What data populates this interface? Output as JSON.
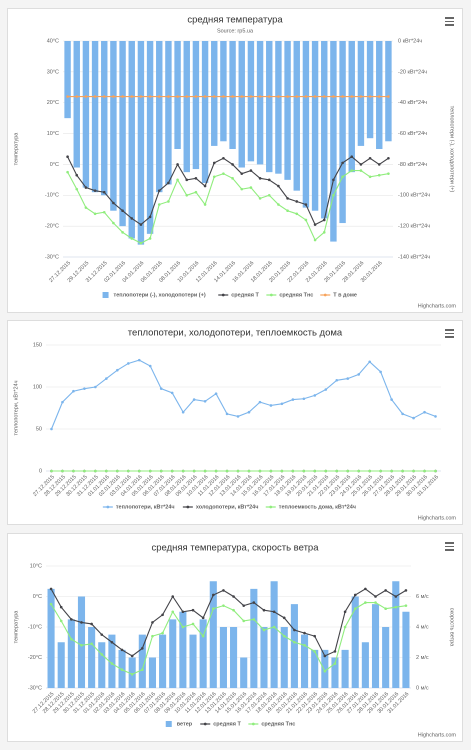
{
  "chart_data": [
    {
      "type": "combo",
      "title": "средняя температура",
      "subtitle": "Source: rp5.ua",
      "y_title": "температура",
      "y2_title": "теплопотери (-), холодопотери (+)",
      "credits": "Highcharts.com",
      "legend": "bottom",
      "grid": true,
      "categories": [
        "27.12.2015",
        null,
        "29.12.2015",
        null,
        "31.12.2015",
        null,
        "02.01.2016",
        null,
        "04.01.2016",
        null,
        "06.01.2016",
        null,
        "08.01.2016",
        null,
        "10.01.2016",
        null,
        "12.01.2016",
        null,
        "14.01.2016",
        null,
        "16.01.2016",
        null,
        "18.01.2016",
        null,
        "20.01.2016",
        null,
        "22.01.2016",
        null,
        "24.01.2016",
        null,
        "26.01.2016",
        null,
        "28.01.2016",
        null,
        "30.01.2016",
        null
      ],
      "ylim": [
        -30,
        40
      ],
      "yticks": [
        {
          "value": -30,
          "label": "-30°C"
        },
        {
          "value": -20,
          "label": "-20°C"
        },
        {
          "value": -10,
          "label": "-10°C"
        },
        {
          "value": 0,
          "label": "0°C"
        },
        {
          "value": 10,
          "label": "10°C"
        },
        {
          "value": 20,
          "label": "20°C"
        },
        {
          "value": 30,
          "label": "30°C"
        },
        {
          "value": 40,
          "label": "40°C"
        }
      ],
      "y2lim": [
        -140,
        0
      ],
      "y2ticks": [
        {
          "value": -140,
          "label": "-140 кВт*24ч"
        },
        {
          "value": -120,
          "label": "-120 кВт*24ч"
        },
        {
          "value": -100,
          "label": "-100 кВт*24ч"
        },
        {
          "value": -80,
          "label": "-80 кВт*24ч"
        },
        {
          "value": -60,
          "label": "-60 кВт*24ч"
        },
        {
          "value": -40,
          "label": "-40 кВт*24ч"
        },
        {
          "value": -20,
          "label": "-20 кВт*24ч"
        },
        {
          "value": 0,
          "label": "0 кВт*24ч"
        }
      ],
      "series": [
        {
          "name": "теплопотери (-), холодопотери (+)",
          "type": "bar",
          "axis": "y2",
          "color": "#7cb5ec",
          "values": [
            -50,
            -82,
            -95,
            -98,
            -100,
            -110,
            -120,
            -128,
            -132,
            -125,
            -98,
            -93,
            -70,
            -85,
            -83,
            -92,
            -68,
            -65,
            -70,
            -82,
            -78,
            -80,
            -85,
            -86,
            -90,
            -97,
            -108,
            -110,
            -115,
            -130,
            -118,
            -85,
            -68,
            -63,
            -70,
            -65
          ]
        },
        {
          "name": "средняя Т",
          "type": "line",
          "color": "#434348",
          "values": [
            2.5,
            -3.5,
            -7.5,
            -8.5,
            -9,
            -12.5,
            -15,
            -17.5,
            -19.5,
            -17,
            -8.5,
            -6,
            0,
            -5,
            -4.5,
            -7,
            0.5,
            2,
            0,
            -3,
            -2,
            -4.5,
            -5,
            -7,
            -11,
            -12,
            -13,
            -19.5,
            -18,
            -5,
            0.5,
            2.5,
            0,
            2,
            0,
            2
          ]
        },
        {
          "name": "средняя Тнс",
          "type": "line",
          "color": "#90ed7d",
          "values": [
            -2.5,
            -8,
            -14,
            -16,
            -15.5,
            -19,
            -22,
            -24,
            -25.5,
            -24,
            -13,
            -12,
            -5,
            -10,
            -9,
            -13,
            -4,
            -3,
            -4.5,
            -8,
            -7.5,
            -11,
            -10,
            -13,
            -15,
            -16,
            -18,
            -24.5,
            -22,
            -10,
            -4,
            -2,
            -2,
            -4,
            -3.5,
            -3
          ]
        },
        {
          "name": "Т в доме",
          "type": "line",
          "color": "#f7a35c",
          "values": [
            22,
            22,
            22,
            22,
            22,
            22,
            22,
            22,
            22,
            22,
            22,
            22,
            22,
            22,
            22,
            22,
            22,
            22,
            22,
            22,
            22,
            22,
            22,
            22,
            22,
            22,
            22,
            22,
            22,
            22,
            22,
            22,
            22,
            22,
            22,
            22
          ]
        }
      ]
    },
    {
      "type": "line",
      "title": "теплопотери, холодопотери, теплоемкость дома",
      "y_title": "теплопотери, кВт*24ч",
      "credits": "Highcharts.com",
      "legend": "bottom",
      "grid": true,
      "categories": [
        "27.12.2015",
        "28.12.2015",
        "29.12.2015",
        "30.12.2015",
        "31.12.2015",
        "01.01.2016",
        "02.01.2016",
        "03.01.2016",
        "04.01.2016",
        "05.01.2016",
        "06.01.2016",
        "07.01.2016",
        "08.01.2016",
        "09.01.2016",
        "10.01.2016",
        "11.01.2016",
        "12.01.2016",
        "13.01.2016",
        "14.01.2016",
        "15.01.2016",
        "16.01.2016",
        "17.01.2016",
        "18.01.2016",
        "19.01.2016",
        "20.01.2016",
        "21.01.2016",
        "22.01.2016",
        "23.01.2016",
        "24.01.2016",
        "25.01.2016",
        "26.01.2016",
        "27.01.2016",
        "28.01.2016",
        "29.01.2016",
        "30.01.2016",
        "31.01.2016"
      ],
      "ylim": [
        0,
        150
      ],
      "yticks": [
        0,
        50,
        100,
        150
      ],
      "series": [
        {
          "name": "теплопотери, кВт*24ч",
          "color": "#7cb5ec",
          "values": [
            50,
            82,
            95,
            98,
            100,
            110,
            120,
            128,
            132,
            125,
            98,
            93,
            70,
            85,
            83,
            92,
            68,
            65,
            70,
            82,
            78,
            80,
            85,
            86,
            90,
            97,
            108,
            110,
            115,
            130,
            118,
            85,
            68,
            63,
            70,
            65
          ]
        },
        {
          "name": "холодопотери, кВт*24ч",
          "color": "#434348",
          "values": [
            0,
            0,
            0,
            0,
            0,
            0,
            0,
            0,
            0,
            0,
            0,
            0,
            0,
            0,
            0,
            0,
            0,
            0,
            0,
            0,
            0,
            0,
            0,
            0,
            0,
            0,
            0,
            0,
            0,
            0,
            0,
            0,
            0,
            0,
            0,
            0
          ]
        },
        {
          "name": "теплоемкость дома, кВт*24ч",
          "color": "#90ed7d",
          "values": [
            0,
            0,
            0,
            0,
            0,
            0,
            0,
            0,
            0,
            0,
            0,
            0,
            0,
            0,
            0,
            0,
            0,
            0,
            0,
            0,
            0,
            0,
            0,
            0,
            0,
            0,
            0,
            0,
            0,
            0,
            0,
            0,
            0,
            0,
            0,
            0
          ]
        }
      ]
    },
    {
      "type": "combo",
      "title": "средняя температура, скорость ветра",
      "y_title": "температура",
      "y2_title": "скорость ветра",
      "credits": "Highcharts.com",
      "legend": "bottom",
      "grid": true,
      "categories": [
        "27.12.2015",
        "28.12.2015",
        "29.12.2015",
        "30.12.2015",
        "31.12.2015",
        "01.01.2016",
        "02.01.2016",
        "03.01.2016",
        "04.01.2016",
        "05.01.2016",
        "06.01.2016",
        "07.01.2016",
        "08.01.2016",
        "09.01.2016",
        "10.01.2016",
        "11.01.2016",
        "12.01.2016",
        "13.01.2016",
        "14.01.2016",
        "15.01.2016",
        "16.01.2016",
        "17.01.2016",
        "18.01.2016",
        "19.01.2016",
        "20.01.2016",
        "21.01.2016",
        "22.01.2016",
        "23.01.2016",
        "24.01.2016",
        "25.01.2016",
        "26.01.2016",
        "27.01.2016",
        "28.01.2016",
        "29.01.2016",
        "30.01.2016",
        "31.01.2016"
      ],
      "ylim": [
        -30,
        10
      ],
      "yticks": [
        {
          "value": -30,
          "label": "-30°C"
        },
        {
          "value": -20,
          "label": "-20°C"
        },
        {
          "value": -10,
          "label": "-10°C"
        },
        {
          "value": 0,
          "label": "0°C"
        },
        {
          "value": 10,
          "label": "10°C"
        }
      ],
      "y2lim": [
        0,
        8
      ],
      "y2ticks": [
        {
          "value": 0,
          "label": "0 м/с"
        },
        {
          "value": 2,
          "label": "2 м/с"
        },
        {
          "value": 4,
          "label": "4 м/с"
        },
        {
          "value": 6,
          "label": "6 м/с"
        }
      ],
      "series": [
        {
          "name": "ветер",
          "type": "bar",
          "axis": "y2",
          "color": "#7cb5ec",
          "values": [
            6.5,
            3,
            4.5,
            6,
            4,
            3,
            3.5,
            2.5,
            2,
            3.5,
            2,
            3.5,
            4.5,
            5,
            3.5,
            4.5,
            7,
            4,
            4,
            2,
            6.5,
            4,
            7,
            4,
            5.5,
            3.5,
            2.5,
            2.5,
            2,
            2.5,
            6,
            3,
            5.5,
            4,
            7,
            5
          ]
        },
        {
          "name": "средняя Т",
          "type": "line",
          "color": "#434348",
          "values": [
            2.5,
            -3.5,
            -7.5,
            -8.5,
            -9,
            -12.5,
            -15,
            -17.5,
            -19.5,
            -17,
            -8.5,
            -6,
            0,
            -5,
            -4.5,
            -7,
            0.5,
            2,
            0,
            -3,
            -2,
            -4.5,
            -5,
            -7,
            -11,
            -12,
            -13,
            -19.5,
            -18,
            -5,
            0.5,
            2.5,
            0,
            2,
            0,
            2
          ]
        },
        {
          "name": "средняя Тнс",
          "type": "line",
          "color": "#90ed7d",
          "values": [
            -2.5,
            -8,
            -14,
            -16,
            -15.5,
            -19,
            -22,
            -24,
            -25.5,
            -24,
            -13,
            -12,
            -5,
            -10,
            -9,
            -13,
            -4,
            -3,
            -4.5,
            -8,
            -7.5,
            -11,
            -10,
            -13,
            -15,
            -16,
            -18,
            -24.5,
            -22,
            -10,
            -4,
            -2,
            -2,
            -4,
            -3.5,
            -3
          ]
        }
      ]
    }
  ]
}
